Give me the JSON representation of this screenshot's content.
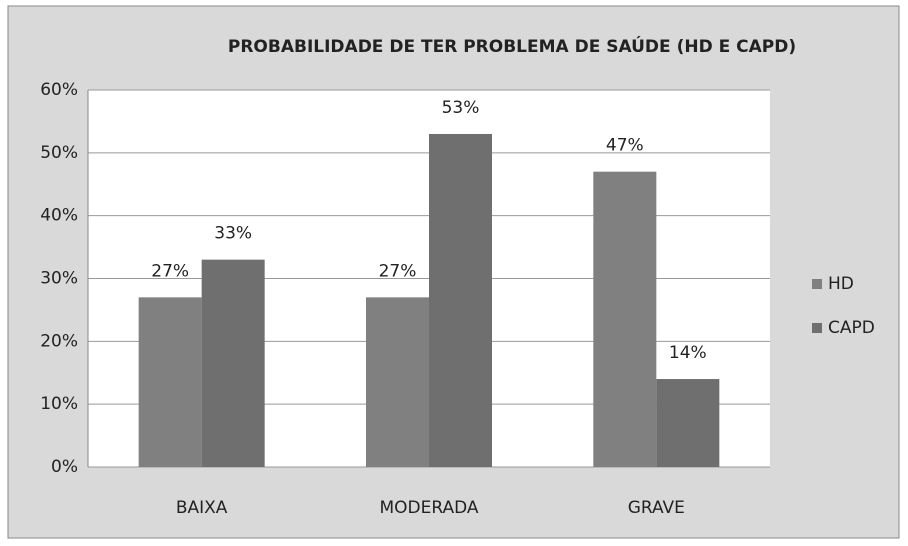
{
  "chart_data": {
    "type": "bar",
    "title": "PROBABILIDADE DE TER PROBLEMA DE SAÚDE (HD E CAPD)",
    "categories": [
      "BAIXA",
      "MODERADA",
      "GRAVE"
    ],
    "series": [
      {
        "name": "HD",
        "color": "#808080",
        "values": [
          27,
          27,
          47
        ],
        "value_labels": [
          "27%",
          "27%",
          "47%"
        ]
      },
      {
        "name": "CAPD",
        "color": "#6f6f6f",
        "values": [
          33,
          53,
          14
        ],
        "value_labels": [
          "33%",
          "53%",
          "14%"
        ]
      }
    ],
    "ylim": [
      0,
      60
    ],
    "yticks": [
      {
        "value": 0,
        "label": "0%"
      },
      {
        "value": 10,
        "label": "10%"
      },
      {
        "value": 20,
        "label": "20%"
      },
      {
        "value": 30,
        "label": "30%"
      },
      {
        "value": 40,
        "label": "40%"
      },
      {
        "value": 50,
        "label": "50%"
      },
      {
        "value": 60,
        "label": "60%"
      }
    ],
    "grid": true,
    "legend": "right"
  }
}
